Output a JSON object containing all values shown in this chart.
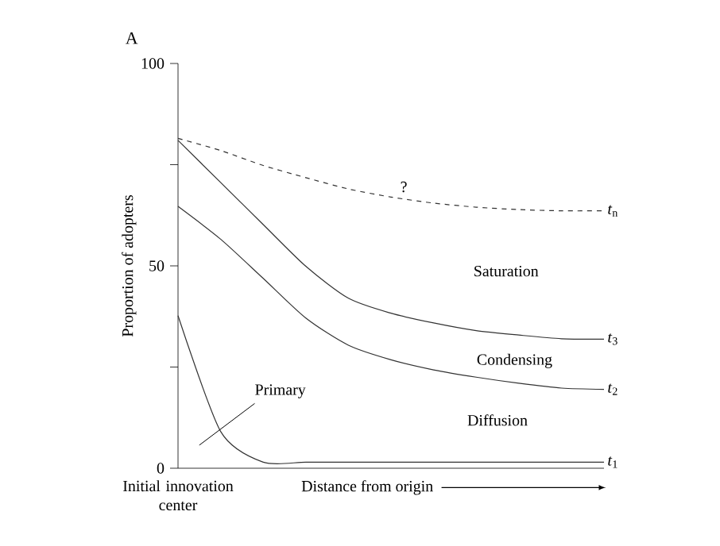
{
  "chart_data": {
    "type": "line",
    "title": "A",
    "xlabel": "Distance from origin",
    "ylabel": "Proportion of adopters",
    "categories": [
      null,
      null,
      null,
      null,
      null,
      null,
      null,
      null,
      null,
      null,
      null
    ],
    "series": [
      {
        "name": "*t*$_{n}$",
        "color": "#333333",
        "line_style": "dashed",
        "values": [
          81.5,
          78.5,
          74.8,
          71.8,
          69,
          67,
          65.5,
          64.5,
          63.9,
          63.6,
          63.6
        ]
      },
      {
        "name": "*t*$_{3}$",
        "color": "#333333",
        "line_style": "solid",
        "values": [
          81,
          70.6,
          60.2,
          49.9,
          42,
          38.3,
          35.9,
          34,
          32.9,
          32,
          31.9
        ]
      },
      {
        "name": "*t*$_{2}$",
        "color": "#333333",
        "line_style": "solid",
        "values": [
          64.7,
          56.6,
          46.9,
          37.1,
          30.4,
          26.8,
          24.3,
          22.5,
          21,
          19.8,
          19.5
        ]
      },
      {
        "name": "*t*$_{1}$",
        "color": "#333333",
        "line_style": "solid",
        "values": [
          37.7,
          9.1,
          1.5,
          1.5,
          1.5,
          1.5,
          1.5,
          1.5,
          1.5,
          1.5,
          1.5
        ]
      }
    ],
    "ylim": [
      0,
      100
    ],
    "yticks": [
      0,
      {
        "value": 25,
        "label": null
      },
      50,
      {
        "value": 75,
        "label": null
      },
      100
    ],
    "annotations": [
      "?",
      "Saturation",
      "Condensing",
      "Diffusion",
      "Primary",
      "Initial innovation center"
    ],
    "grid": false,
    "legend": false
  }
}
